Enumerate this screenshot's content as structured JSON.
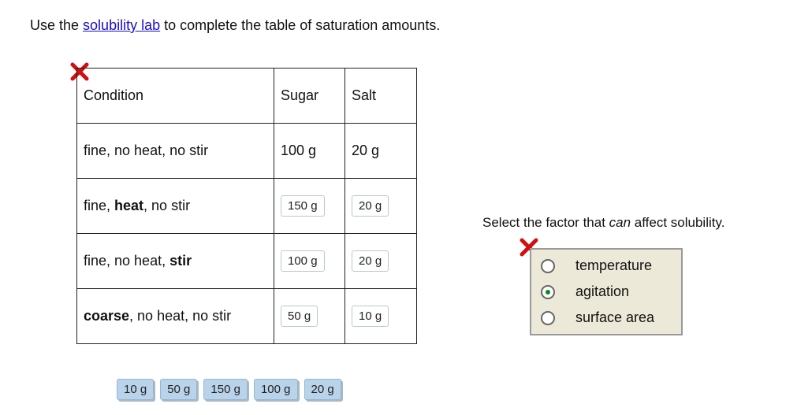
{
  "instruction": {
    "before": "Use the ",
    "link": "solubility lab",
    "after": " to complete the table of saturation amounts."
  },
  "table": {
    "header": [
      "Condition",
      "Sugar",
      "Salt"
    ],
    "rows": [
      {
        "condition": [
          "fine, no heat, no stir"
        ],
        "sugar": "100 g",
        "salt": "20 g"
      },
      {
        "condition": [
          "fine, ",
          "heat",
          ", no stir"
        ],
        "sugar": "150 g",
        "salt": "20 g"
      },
      {
        "condition": [
          "fine, no heat, ",
          "stir"
        ],
        "sugar": "100 g",
        "salt": "20 g"
      },
      {
        "condition": [
          "coarse",
          ", no heat, no stir"
        ],
        "sugar": "50 g",
        "salt": "10 g"
      }
    ]
  },
  "answer_tiles": [
    "10 g",
    "50 g",
    "150 g",
    "100 g",
    "20 g"
  ],
  "question": {
    "before": "Select the factor that ",
    "emphasis": "can",
    "after": " affect solubility.",
    "options": [
      "temperature",
      "agitation",
      "surface area"
    ]
  }
}
